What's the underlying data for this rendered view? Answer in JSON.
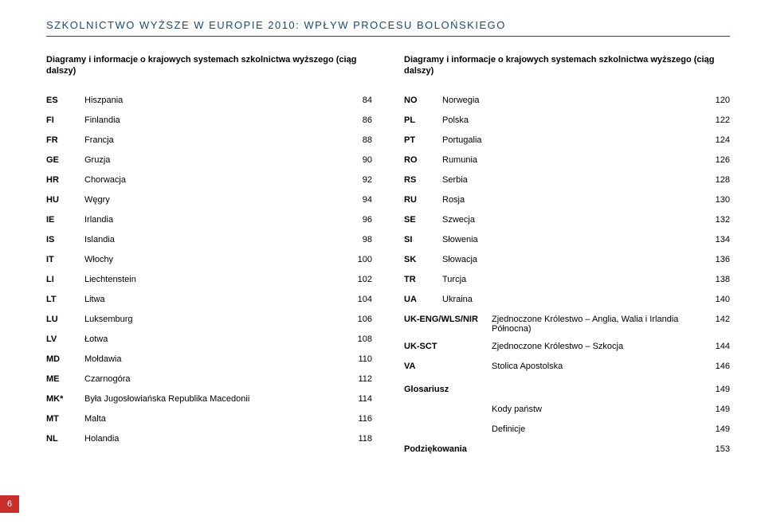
{
  "header": "SZKOLNICTWO WYŻSZE W EUROPIE 2010: WPŁYW PROCESU BOLOŃSKIEGO",
  "left": {
    "heading": "Diagramy i informacje o krajowych systemach szkolnictwa wyższego (ciąg dalszy)",
    "rows": [
      {
        "code": "ES",
        "name": "Hiszpania",
        "page": "84"
      },
      {
        "code": "FI",
        "name": "Finlandia",
        "page": "86"
      },
      {
        "code": "FR",
        "name": "Francja",
        "page": "88"
      },
      {
        "code": "GE",
        "name": "Gruzja",
        "page": "90"
      },
      {
        "code": "HR",
        "name": "Chorwacja",
        "page": "92"
      },
      {
        "code": "HU",
        "name": "Węgry",
        "page": "94"
      },
      {
        "code": "IE",
        "name": "Irlandia",
        "page": "96"
      },
      {
        "code": "IS",
        "name": "Islandia",
        "page": "98"
      },
      {
        "code": "IT",
        "name": "Włochy",
        "page": "100"
      },
      {
        "code": "LI",
        "name": "Liechtenstein",
        "page": "102"
      },
      {
        "code": "LT",
        "name": "Litwa",
        "page": "104"
      },
      {
        "code": "LU",
        "name": "Luksemburg",
        "page": "106"
      },
      {
        "code": "LV",
        "name": "Łotwa",
        "page": "108"
      },
      {
        "code": "MD",
        "name": "Mołdawia",
        "page": "110"
      },
      {
        "code": "ME",
        "name": "Czarnogóra",
        "page": "112"
      },
      {
        "code": "MK*",
        "name": "Była Jugosłowiańska Republika Macedonii",
        "page": "114"
      },
      {
        "code": "MT",
        "name": "Malta",
        "page": "116"
      },
      {
        "code": "NL",
        "name": "Holandia",
        "page": "118"
      }
    ]
  },
  "right": {
    "heading": "Diagramy i informacje o krajowych systemach szkolnictwa wyższego (ciąg dalszy)",
    "rows": [
      {
        "code": "NO",
        "name": "Norwegia",
        "page": "120"
      },
      {
        "code": "PL",
        "name": "Polska",
        "page": "122"
      },
      {
        "code": "PT",
        "name": "Portugalia",
        "page": "124"
      },
      {
        "code": "RO",
        "name": "Rumunia",
        "page": "126"
      },
      {
        "code": "RS",
        "name": "Serbia",
        "page": "128"
      },
      {
        "code": "RU",
        "name": "Rosja",
        "page": "130"
      },
      {
        "code": "SE",
        "name": "Szwecja",
        "page": "132"
      },
      {
        "code": "SI",
        "name": "Słowenia",
        "page": "134"
      },
      {
        "code": "SK",
        "name": "Słowacja",
        "page": "136"
      },
      {
        "code": "TR",
        "name": "Turcja",
        "page": "138"
      },
      {
        "code": "UA",
        "name": "Ukraina",
        "page": "140"
      }
    ],
    "wide_rows": [
      {
        "code": "UK-ENG/WLS/NIR",
        "name": "Zjednoczone Królestwo – Anglia, Walia i Irlandia Północna)",
        "page": "142"
      },
      {
        "code": "UK-SCT",
        "name": "Zjednoczone Królestwo – Szkocja",
        "page": "144"
      },
      {
        "code": "VA",
        "name": "Stolica Apostolska",
        "page": "146"
      }
    ],
    "glossary": {
      "label": "Glosariusz",
      "page": "149"
    },
    "sub1": {
      "label": "Kody państw",
      "page": "149"
    },
    "sub2": {
      "label": "Definicje",
      "page": "149"
    },
    "thanks": {
      "label": "Podziękowania",
      "page": "153"
    }
  },
  "footer_page": "6"
}
